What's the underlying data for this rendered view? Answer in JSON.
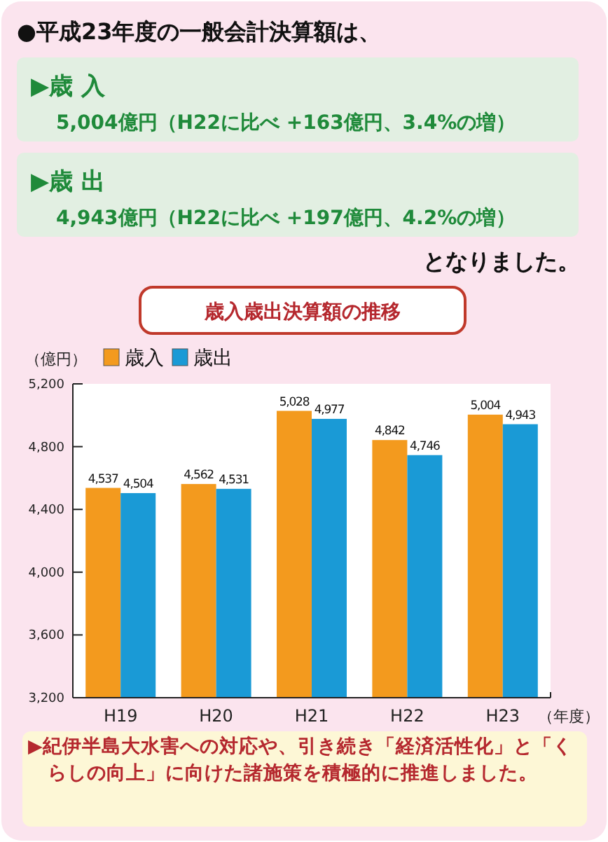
{
  "chart_data": {
    "type": "bar",
    "title": "歳入歳出決算額の推移",
    "ylabel": "（億円）",
    "xlabel": "（年度）",
    "annotations": [
      "●平成23年度の一般会計決算額は、",
      "▶歳 入",
      "5,004億円（H22に比べ +163億円、3.4%の増）",
      "▶歳 出",
      "4,943億円（H22に比べ +197億円、4.2%の増）",
      "となりました。",
      "▶紀伊半島大水害への対応や、引き続き「経済活性化」と「くらしの向上」に向けた諸施策を積極的に推進しました。"
    ],
    "categories": [
      "H19",
      "H20",
      "H21",
      "H22",
      "H23"
    ],
    "series": [
      {
        "name": "歳入",
        "color": "#f39a1e",
        "values": [
          4537,
          4562,
          5028,
          4842,
          5004
        ],
        "value_labels": [
          "4,537",
          "4,562",
          "5,028",
          "4,842",
          "5,004"
        ]
      },
      {
        "name": "歳出",
        "color": "#1a9ad6",
        "values": [
          4504,
          4531,
          4977,
          4746,
          4943
        ],
        "value_labels": [
          "4,504",
          "4,531",
          "4,977",
          "4,746",
          "4,943"
        ]
      }
    ],
    "ylim": [
      3200,
      5200
    ],
    "yticks": [
      {
        "value": 3200,
        "label": "3,200"
      },
      {
        "value": 3600,
        "label": "3,600"
      },
      {
        "value": 4000,
        "label": "4,000"
      },
      {
        "value": 4400,
        "label": "4,400"
      },
      {
        "value": 4800,
        "label": "4,800"
      },
      {
        "value": 5200,
        "label": "5,200"
      }
    ],
    "legend": "top left",
    "grid": false
  }
}
